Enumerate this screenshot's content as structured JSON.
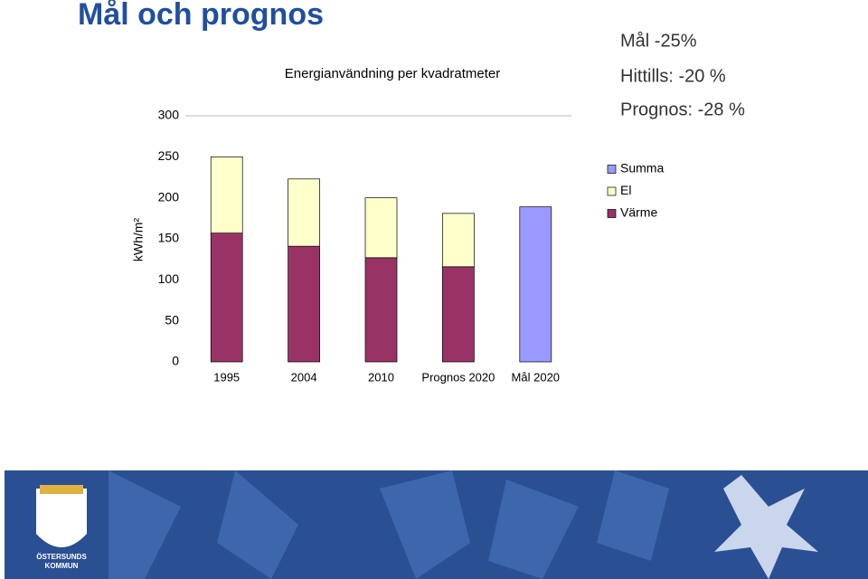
{
  "slide": {
    "title": "Mål och prognos",
    "notes": [
      "Mål -25%",
      "Hittills: -20 %",
      "Prognos: -28 %"
    ],
    "logo": [
      "ÖSTERSUNDS",
      "KOMMUN"
    ]
  },
  "chart_data": {
    "type": "stacked-bar",
    "title": "Energianvändning per kvadratmeter",
    "y_label": "kWh/m²",
    "categories": [
      "1995",
      "2004",
      "2010",
      "Prognos 2020",
      "Mål 2020"
    ],
    "series": [
      {
        "name": "Värme",
        "color": "#993366",
        "values": [
          157,
          141,
          127,
          116,
          null
        ]
      },
      {
        "name": "El",
        "color": "#ffffcc",
        "values": [
          93,
          82,
          73,
          65,
          null
        ]
      },
      {
        "name": "Summa",
        "color": "#9999ff",
        "values": [
          null,
          null,
          null,
          null,
          189
        ]
      }
    ],
    "ylim": [
      0,
      300
    ],
    "yticks": [
      0,
      50,
      100,
      150,
      200,
      250,
      300
    ],
    "legend": "right"
  }
}
